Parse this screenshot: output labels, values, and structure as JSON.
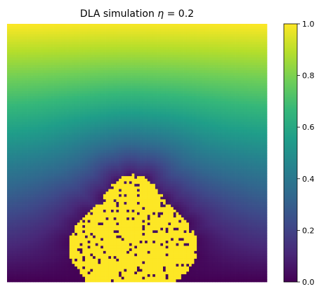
{
  "chart_data": {
    "type": "heatmap",
    "title": "DLA simulation η = 0.2",
    "title_prefix": "DLA simulation ",
    "title_symbol": "η",
    "title_suffix": " = 0.2",
    "xlabel": "",
    "ylabel": "",
    "x_axis_visible": false,
    "y_axis_visible": false,
    "grid": false,
    "colormap": "viridis",
    "colormap_stops": [
      "#440154",
      "#482878",
      "#3e4989",
      "#31688e",
      "#26828e",
      "#1f9e89",
      "#35b779",
      "#6ece58",
      "#b5de2b",
      "#fde725"
    ],
    "value_range": [
      0.0,
      1.0
    ],
    "grid_size": [
      100,
      100
    ],
    "field": {
      "description_of_values": "value at top row",
      "top_value": 1.0,
      "bottom_value": 0.0
    },
    "cluster": {
      "value": 1.0,
      "seed_column": 48,
      "base_row": 99,
      "height_rows": 41,
      "half_width_rows": 24
    },
    "colorbar": {
      "ticks": [
        0.0,
        0.2,
        0.4,
        0.6,
        0.8,
        1.0
      ],
      "tick_labels": [
        "0.0",
        "0.2",
        "0.4",
        "0.6",
        "0.8",
        "1.0"
      ],
      "placement": "right"
    }
  }
}
